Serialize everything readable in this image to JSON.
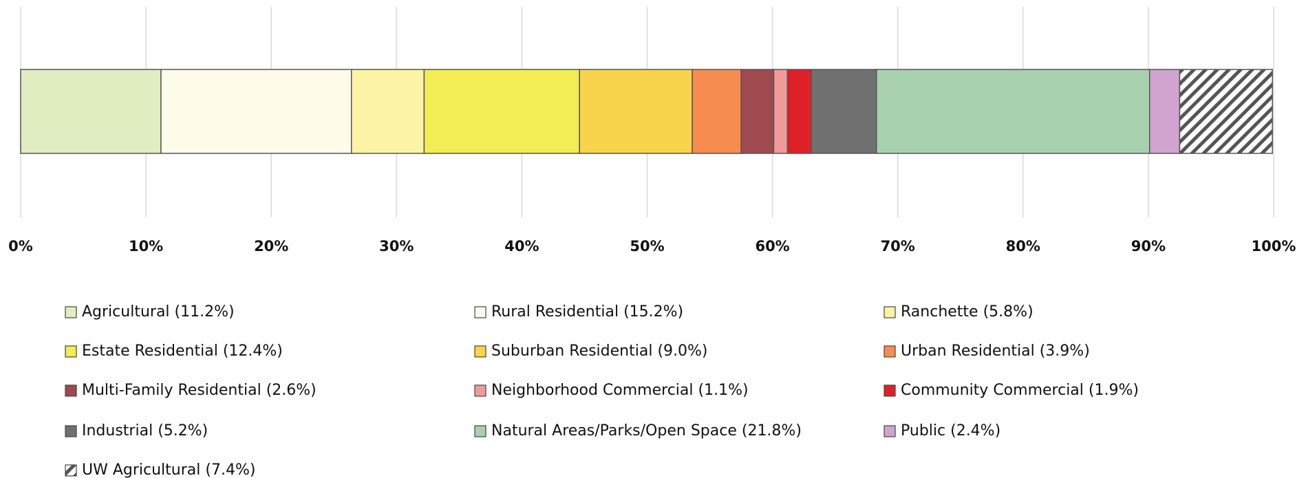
{
  "chart_data": {
    "type": "bar",
    "orientation": "horizontal",
    "stacked": true,
    "xlim": [
      0,
      100
    ],
    "xticks": [
      {
        "value": 0,
        "label": "0%"
      },
      {
        "value": 10,
        "label": "10%"
      },
      {
        "value": 20,
        "label": "20%"
      },
      {
        "value": 30,
        "label": "30%"
      },
      {
        "value": 40,
        "label": "40%"
      },
      {
        "value": 50,
        "label": "50%"
      },
      {
        "value": 60,
        "label": "60%"
      },
      {
        "value": 70,
        "label": "70%"
      },
      {
        "value": 80,
        "label": "80%"
      },
      {
        "value": 90,
        "label": "90%"
      },
      {
        "value": 100,
        "label": "100%"
      }
    ],
    "grid": true,
    "series": [
      {
        "name": "Agricultural",
        "color": "#dfedc1",
        "values": [
          11.2
        ],
        "value_labels": [
          "(11.2%)"
        ]
      },
      {
        "name": "Rural Residential",
        "color": "#fffbeb",
        "values": [
          15.2
        ],
        "value_labels": [
          "(15.2%)"
        ]
      },
      {
        "name": "Ranchette",
        "color": "#fcf3a6",
        "values": [
          5.8
        ],
        "value_labels": [
          "(5.8%)"
        ]
      },
      {
        "name": "Estate Residential",
        "color": "#f2ec55",
        "values": [
          12.4
        ],
        "value_labels": [
          "(12.4%)"
        ]
      },
      {
        "name": "Suburban Residential",
        "color": "#f7d44c",
        "values": [
          9.0
        ],
        "value_labels": [
          "(9.0%)"
        ]
      },
      {
        "name": "Urban Residential",
        "color": "#f78c50",
        "values": [
          3.9
        ],
        "value_labels": [
          "(3.9%)"
        ]
      },
      {
        "name": "Multi-Family Residential",
        "color": "#9e4a4e",
        "values": [
          2.6
        ],
        "value_labels": [
          "(2.6%)"
        ]
      },
      {
        "name": "Neighborhood Commercial",
        "color": "#f09a9a",
        "values": [
          1.1
        ],
        "value_labels": [
          "(1.1%)"
        ]
      },
      {
        "name": "Community Commercial",
        "color": "#e02027",
        "values": [
          1.9
        ],
        "value_labels": [
          "(1.9%)"
        ]
      },
      {
        "name": "Industrial",
        "color": "#707070",
        "values": [
          5.2
        ],
        "value_labels": [
          "(5.2%)"
        ]
      },
      {
        "name": "Natural Areas/Parks/Open Space",
        "color": "#a7d1ae",
        "values": [
          21.8
        ],
        "value_labels": [
          "(21.8%)"
        ]
      },
      {
        "name": "Public",
        "color": "#d0a4cf",
        "values": [
          2.4
        ],
        "value_labels": [
          "(2.4%)"
        ]
      },
      {
        "name": "UW Agricultural",
        "color": "#555555",
        "hatch": true,
        "values": [
          7.4
        ],
        "value_labels": [
          "(7.4%)"
        ]
      }
    ]
  }
}
